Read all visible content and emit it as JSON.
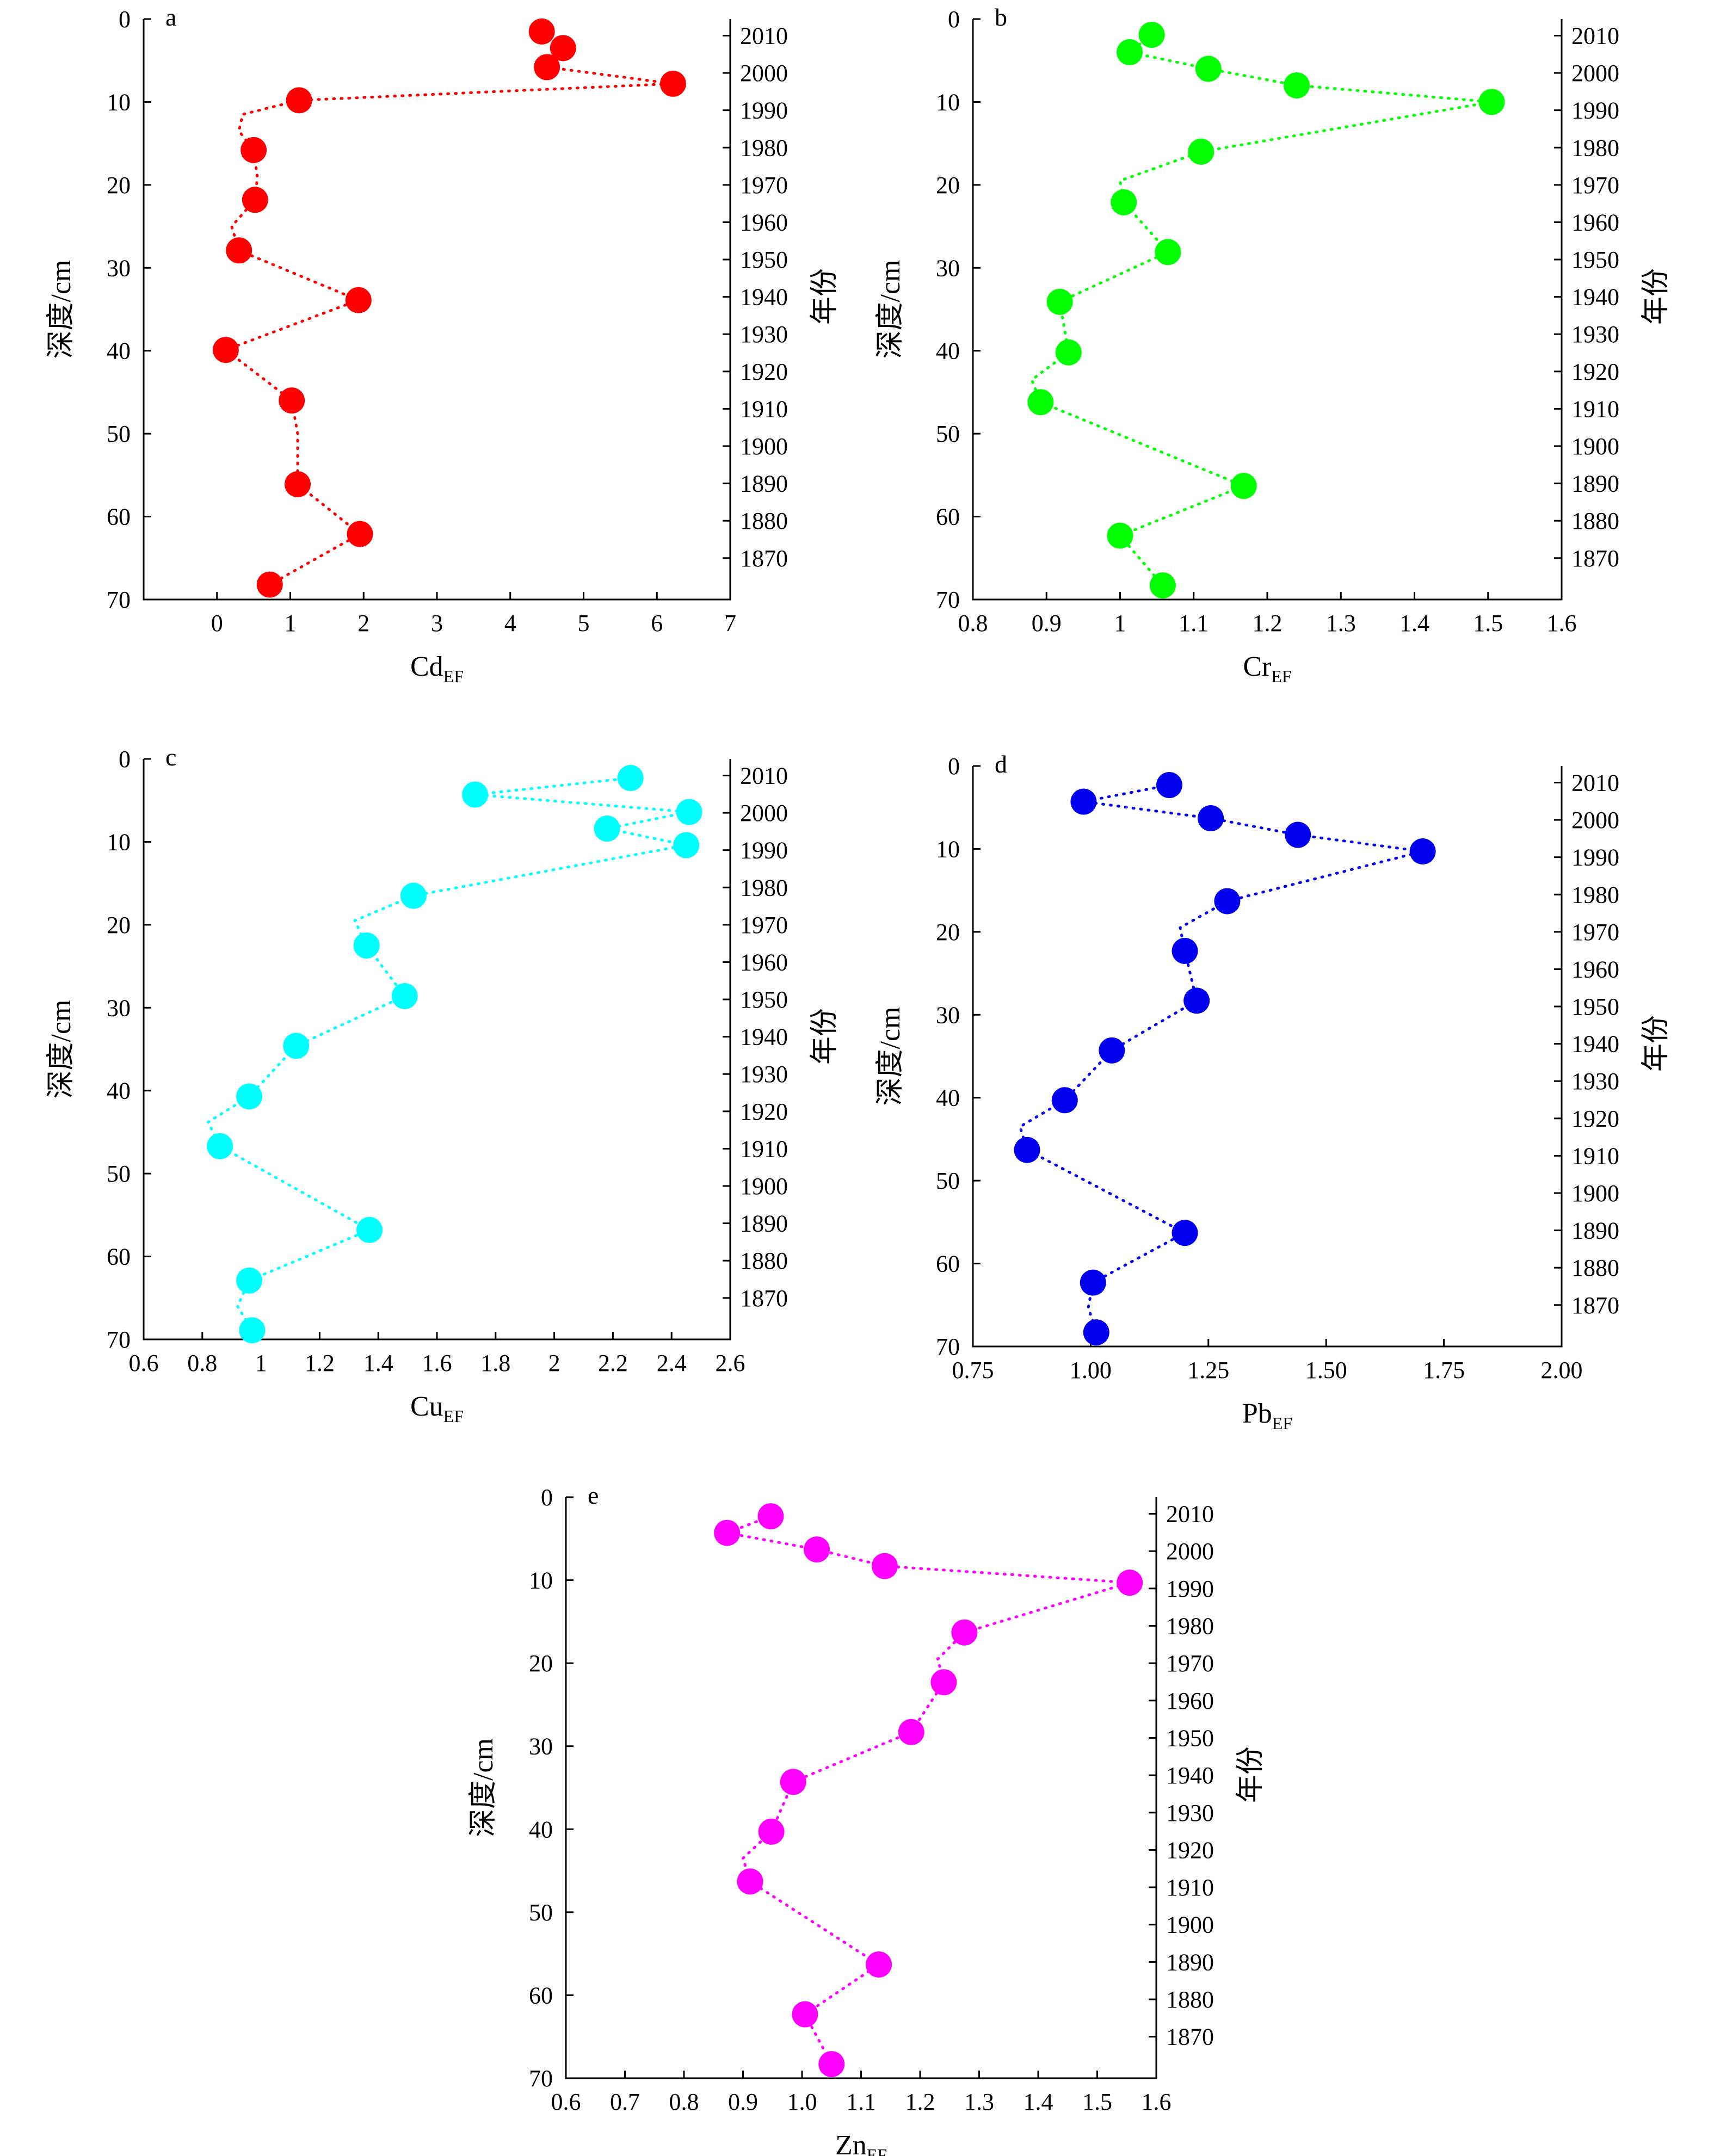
{
  "chart_data": [
    {
      "panel": "a",
      "type": "scatter",
      "xlabel_main": "Cd",
      "xlabel_sub": "EF",
      "ylabel": "深度/cm",
      "ylabel_right": "年份",
      "color": "#ff0000",
      "xlim": [
        -1,
        7
      ],
      "xticks": [
        0,
        1,
        2,
        3,
        4,
        5,
        6,
        7
      ],
      "ylim": [
        0,
        70
      ],
      "yticks": [
        0,
        10,
        20,
        30,
        40,
        50,
        60,
        70
      ],
      "right_ticks": [
        {
          "label": "2010",
          "depth": 2.0
        },
        {
          "label": "2000",
          "depth": 6.5
        },
        {
          "label": "1990",
          "depth": 11.0
        },
        {
          "label": "1980",
          "depth": 15.5
        },
        {
          "label": "1970",
          "depth": 20.0
        },
        {
          "label": "1960",
          "depth": 24.5
        },
        {
          "label": "1950",
          "depth": 29.0
        },
        {
          "label": "1940",
          "depth": 33.5
        },
        {
          "label": "1930",
          "depth": 38.0
        },
        {
          "label": "1920",
          "depth": 42.5
        },
        {
          "label": "1910",
          "depth": 47.0
        },
        {
          "label": "1900",
          "depth": 51.5
        },
        {
          "label": "1890",
          "depth": 56.0
        },
        {
          "label": "1880",
          "depth": 60.5
        },
        {
          "label": "1870",
          "depth": 65.0
        }
      ],
      "points": [
        {
          "x": 4.43,
          "y": 1.5
        },
        {
          "x": 4.72,
          "y": 3.5
        },
        {
          "x": 4.5,
          "y": 5.8
        },
        {
          "x": 6.22,
          "y": 7.8
        },
        {
          "x": 1.12,
          "y": 9.8
        },
        {
          "x": 0.5,
          "y": 15.8
        },
        {
          "x": 0.52,
          "y": 21.8
        },
        {
          "x": 0.3,
          "y": 27.9
        },
        {
          "x": 1.93,
          "y": 33.9
        },
        {
          "x": 0.12,
          "y": 39.9
        },
        {
          "x": 1.02,
          "y": 46.0
        },
        {
          "x": 1.1,
          "y": 56.1
        },
        {
          "x": 1.95,
          "y": 62.1
        },
        {
          "x": 0.72,
          "y": 68.2
        }
      ],
      "curve": [
        {
          "x": 4.43,
          "y": 1.5
        },
        {
          "x": 4.72,
          "y": 3.5
        },
        {
          "x": 4.5,
          "y": 5.8
        },
        {
          "x": 6.22,
          "y": 7.8
        },
        {
          "x": 1.12,
          "y": 9.8
        },
        {
          "x": 0.35,
          "y": 11.5
        },
        {
          "x": 0.3,
          "y": 13.5
        },
        {
          "x": 0.5,
          "y": 15.8
        },
        {
          "x": 0.55,
          "y": 19.0
        },
        {
          "x": 0.52,
          "y": 21.8
        },
        {
          "x": 0.2,
          "y": 25.0
        },
        {
          "x": 0.3,
          "y": 27.9
        },
        {
          "x": 1.93,
          "y": 33.9
        },
        {
          "x": 0.12,
          "y": 39.9
        },
        {
          "x": 1.02,
          "y": 46.0
        },
        {
          "x": 1.1,
          "y": 50.0
        },
        {
          "x": 1.1,
          "y": 56.1
        },
        {
          "x": 1.95,
          "y": 62.1
        },
        {
          "x": 0.72,
          "y": 68.2
        }
      ]
    },
    {
      "panel": "b",
      "type": "scatter",
      "xlabel_main": "Cr",
      "xlabel_sub": "EF",
      "ylabel": "深度/cm",
      "ylabel_right": "年份",
      "color": "#00ff00",
      "xlim": [
        0.8,
        1.6
      ],
      "xticks": [
        0.8,
        0.9,
        1.0,
        1.1,
        1.2,
        1.3,
        1.4,
        1.5,
        1.6
      ],
      "ylim": [
        0,
        70
      ],
      "yticks": [
        0,
        10,
        20,
        30,
        40,
        50,
        60,
        70
      ],
      "right_ticks": [
        {
          "label": "2010",
          "depth": 2.0
        },
        {
          "label": "2000",
          "depth": 6.5
        },
        {
          "label": "1990",
          "depth": 11.0
        },
        {
          "label": "1980",
          "depth": 15.5
        },
        {
          "label": "1970",
          "depth": 20.0
        },
        {
          "label": "1960",
          "depth": 24.5
        },
        {
          "label": "1950",
          "depth": 29.0
        },
        {
          "label": "1940",
          "depth": 33.5
        },
        {
          "label": "1930",
          "depth": 38.0
        },
        {
          "label": "1920",
          "depth": 42.5
        },
        {
          "label": "1910",
          "depth": 47.0
        },
        {
          "label": "1900",
          "depth": 51.5
        },
        {
          "label": "1890",
          "depth": 56.0
        },
        {
          "label": "1880",
          "depth": 60.5
        },
        {
          "label": "1870",
          "depth": 65.0
        }
      ],
      "points": [
        {
          "x": 1.043,
          "y": 1.9
        },
        {
          "x": 1.013,
          "y": 4.0
        },
        {
          "x": 1.12,
          "y": 6.0
        },
        {
          "x": 1.24,
          "y": 8.0
        },
        {
          "x": 1.505,
          "y": 10.0
        },
        {
          "x": 1.11,
          "y": 16.0
        },
        {
          "x": 1.005,
          "y": 22.1
        },
        {
          "x": 1.065,
          "y": 28.1
        },
        {
          "x": 0.918,
          "y": 34.1
        },
        {
          "x": 0.93,
          "y": 40.2
        },
        {
          "x": 0.892,
          "y": 46.2
        },
        {
          "x": 1.168,
          "y": 56.3
        },
        {
          "x": 1.0,
          "y": 62.3
        },
        {
          "x": 1.058,
          "y": 68.3
        }
      ],
      "curve": [
        {
          "x": 1.043,
          "y": 1.9
        },
        {
          "x": 1.013,
          "y": 4.0
        },
        {
          "x": 1.12,
          "y": 6.0
        },
        {
          "x": 1.24,
          "y": 8.0
        },
        {
          "x": 1.505,
          "y": 10.0
        },
        {
          "x": 1.11,
          "y": 16.0
        },
        {
          "x": 1.0,
          "y": 19.5
        },
        {
          "x": 1.005,
          "y": 22.1
        },
        {
          "x": 1.065,
          "y": 28.1
        },
        {
          "x": 0.918,
          "y": 34.1
        },
        {
          "x": 0.93,
          "y": 40.2
        },
        {
          "x": 0.88,
          "y": 43.5
        },
        {
          "x": 0.892,
          "y": 46.2
        },
        {
          "x": 1.168,
          "y": 56.3
        },
        {
          "x": 1.0,
          "y": 62.3
        },
        {
          "x": 1.058,
          "y": 68.3
        }
      ]
    },
    {
      "panel": "c",
      "type": "scatter",
      "xlabel_main": "Cu",
      "xlabel_sub": "EF",
      "ylabel": "深度/cm",
      "ylabel_right": "年份",
      "color": "#00ffff",
      "xlim": [
        0.6,
        2.6
      ],
      "xticks": [
        0.6,
        0.8,
        1.0,
        1.2,
        1.4,
        1.6,
        1.8,
        2.0,
        2.2,
        2.4,
        2.6
      ],
      "ylim": [
        0,
        70
      ],
      "yticks": [
        0,
        10,
        20,
        30,
        40,
        50,
        60,
        70
      ],
      "right_ticks": [
        {
          "label": "2010",
          "depth": 2.0
        },
        {
          "label": "2000",
          "depth": 6.5
        },
        {
          "label": "1990",
          "depth": 11.0
        },
        {
          "label": "1980",
          "depth": 15.5
        },
        {
          "label": "1970",
          "depth": 20.0
        },
        {
          "label": "1960",
          "depth": 24.5
        },
        {
          "label": "1950",
          "depth": 29.0
        },
        {
          "label": "1940",
          "depth": 33.5
        },
        {
          "label": "1930",
          "depth": 38.0
        },
        {
          "label": "1920",
          "depth": 42.5
        },
        {
          "label": "1910",
          "depth": 47.0
        },
        {
          "label": "1900",
          "depth": 51.5
        },
        {
          "label": "1890",
          "depth": 56.0
        },
        {
          "label": "1880",
          "depth": 60.5
        },
        {
          "label": "1870",
          "depth": 65.0
        }
      ],
      "points": [
        {
          "x": 2.26,
          "y": 2.3
        },
        {
          "x": 1.73,
          "y": 4.3
        },
        {
          "x": 2.46,
          "y": 6.4
        },
        {
          "x": 2.18,
          "y": 8.4
        },
        {
          "x": 2.45,
          "y": 10.4
        },
        {
          "x": 1.52,
          "y": 16.5
        },
        {
          "x": 1.36,
          "y": 22.5
        },
        {
          "x": 1.49,
          "y": 28.6
        },
        {
          "x": 1.12,
          "y": 34.6
        },
        {
          "x": 0.96,
          "y": 40.7
        },
        {
          "x": 0.86,
          "y": 46.7
        },
        {
          "x": 1.37,
          "y": 56.8
        },
        {
          "x": 0.96,
          "y": 62.9
        },
        {
          "x": 0.97,
          "y": 68.9
        }
      ],
      "curve": [
        {
          "x": 2.26,
          "y": 2.3
        },
        {
          "x": 1.73,
          "y": 4.3
        },
        {
          "x": 2.46,
          "y": 6.4
        },
        {
          "x": 2.18,
          "y": 8.4
        },
        {
          "x": 2.45,
          "y": 10.4
        },
        {
          "x": 1.52,
          "y": 16.5
        },
        {
          "x": 1.32,
          "y": 19.5
        },
        {
          "x": 1.36,
          "y": 22.5
        },
        {
          "x": 1.49,
          "y": 28.6
        },
        {
          "x": 1.12,
          "y": 34.6
        },
        {
          "x": 0.96,
          "y": 40.7
        },
        {
          "x": 0.82,
          "y": 43.8
        },
        {
          "x": 0.86,
          "y": 46.7
        },
        {
          "x": 1.37,
          "y": 56.8
        },
        {
          "x": 0.96,
          "y": 62.9
        },
        {
          "x": 0.92,
          "y": 66.0
        },
        {
          "x": 0.97,
          "y": 68.9
        }
      ]
    },
    {
      "panel": "d",
      "type": "scatter",
      "xlabel_main": "Pb",
      "xlabel_sub": "EF",
      "ylabel": "深度/cm",
      "ylabel_right": "年份",
      "color": "#0000ee",
      "xlim": [
        0.75,
        2.0
      ],
      "xticks": [
        0.75,
        1.0,
        1.25,
        1.5,
        1.75,
        2.0
      ],
      "xtick_labels": [
        "0.75",
        "1.00",
        "1.25",
        "1.50",
        "1.75",
        "2.00"
      ],
      "ylim": [
        0,
        70
      ],
      "yticks": [
        0,
        10,
        20,
        30,
        40,
        50,
        60,
        70
      ],
      "right_ticks": [
        {
          "label": "2010",
          "depth": 2.0
        },
        {
          "label": "2000",
          "depth": 6.5
        },
        {
          "label": "1990",
          "depth": 11.0
        },
        {
          "label": "1980",
          "depth": 15.5
        },
        {
          "label": "1970",
          "depth": 20.0
        },
        {
          "label": "1960",
          "depth": 24.5
        },
        {
          "label": "1950",
          "depth": 29.0
        },
        {
          "label": "1940",
          "depth": 33.5
        },
        {
          "label": "1930",
          "depth": 38.0
        },
        {
          "label": "1920",
          "depth": 42.5
        },
        {
          "label": "1910",
          "depth": 47.0
        },
        {
          "label": "1900",
          "depth": 51.5
        },
        {
          "label": "1890",
          "depth": 56.0
        },
        {
          "label": "1880",
          "depth": 60.5
        },
        {
          "label": "1870",
          "depth": 65.0
        }
      ],
      "points": [
        {
          "x": 1.167,
          "y": 2.3
        },
        {
          "x": 0.985,
          "y": 4.3
        },
        {
          "x": 1.255,
          "y": 6.3
        },
        {
          "x": 1.44,
          "y": 8.3
        },
        {
          "x": 1.705,
          "y": 10.3
        },
        {
          "x": 1.29,
          "y": 16.3
        },
        {
          "x": 1.2,
          "y": 22.3
        },
        {
          "x": 1.225,
          "y": 28.3
        },
        {
          "x": 1.045,
          "y": 34.3
        },
        {
          "x": 0.945,
          "y": 40.3
        },
        {
          "x": 0.865,
          "y": 46.3
        },
        {
          "x": 1.2,
          "y": 56.3
        },
        {
          "x": 1.005,
          "y": 62.3
        },
        {
          "x": 1.012,
          "y": 68.3
        }
      ],
      "curve": [
        {
          "x": 1.167,
          "y": 2.3
        },
        {
          "x": 0.985,
          "y": 4.3
        },
        {
          "x": 1.255,
          "y": 6.3
        },
        {
          "x": 1.44,
          "y": 8.3
        },
        {
          "x": 1.705,
          "y": 10.3
        },
        {
          "x": 1.29,
          "y": 16.3
        },
        {
          "x": 1.19,
          "y": 19.5
        },
        {
          "x": 1.2,
          "y": 22.3
        },
        {
          "x": 1.225,
          "y": 28.3
        },
        {
          "x": 1.045,
          "y": 34.3
        },
        {
          "x": 0.945,
          "y": 40.3
        },
        {
          "x": 0.85,
          "y": 43.5
        },
        {
          "x": 0.865,
          "y": 46.3
        },
        {
          "x": 1.2,
          "y": 56.3
        },
        {
          "x": 1.005,
          "y": 62.3
        },
        {
          "x": 0.995,
          "y": 65.3
        },
        {
          "x": 1.012,
          "y": 68.3
        }
      ]
    },
    {
      "panel": "e",
      "type": "scatter",
      "xlabel_main": "Zn",
      "xlabel_sub": "EF",
      "ylabel": "深度/cm",
      "ylabel_right": "年份",
      "color": "#ff00ff",
      "xlim": [
        0.6,
        1.6
      ],
      "xticks": [
        0.6,
        0.7,
        0.8,
        0.9,
        1.0,
        1.1,
        1.2,
        1.3,
        1.4,
        1.5,
        1.6
      ],
      "xtick_labels": [
        "0.6",
        "0.7",
        "0.8",
        "0.9",
        "1.0",
        "1.1",
        "1.2",
        "1.3",
        "1.4",
        "1.5",
        "1.6"
      ],
      "ylim": [
        0,
        70
      ],
      "yticks": [
        0,
        10,
        20,
        30,
        40,
        50,
        60,
        70
      ],
      "right_ticks": [
        {
          "label": "2010",
          "depth": 2.0
        },
        {
          "label": "2000",
          "depth": 6.5
        },
        {
          "label": "1990",
          "depth": 11.0
        },
        {
          "label": "1980",
          "depth": 15.5
        },
        {
          "label": "1970",
          "depth": 20.0
        },
        {
          "label": "1960",
          "depth": 24.5
        },
        {
          "label": "1950",
          "depth": 29.0
        },
        {
          "label": "1940",
          "depth": 33.5
        },
        {
          "label": "1930",
          "depth": 38.0
        },
        {
          "label": "1920",
          "depth": 42.5
        },
        {
          "label": "1910",
          "depth": 47.0
        },
        {
          "label": "1900",
          "depth": 51.5
        },
        {
          "label": "1890",
          "depth": 56.0
        },
        {
          "label": "1880",
          "depth": 60.5
        },
        {
          "label": "1870",
          "depth": 65.0
        }
      ],
      "points": [
        {
          "x": 0.947,
          "y": 2.3
        },
        {
          "x": 0.873,
          "y": 4.3
        },
        {
          "x": 1.025,
          "y": 6.3
        },
        {
          "x": 1.14,
          "y": 8.3
        },
        {
          "x": 1.555,
          "y": 10.3
        },
        {
          "x": 1.275,
          "y": 16.3
        },
        {
          "x": 1.24,
          "y": 22.3
        },
        {
          "x": 1.185,
          "y": 28.3
        },
        {
          "x": 0.985,
          "y": 34.3
        },
        {
          "x": 0.948,
          "y": 40.3
        },
        {
          "x": 0.912,
          "y": 46.3
        },
        {
          "x": 1.13,
          "y": 56.3
        },
        {
          "x": 1.005,
          "y": 62.3
        },
        {
          "x": 1.05,
          "y": 68.3
        }
      ],
      "curve": [
        {
          "x": 0.947,
          "y": 2.3
        },
        {
          "x": 0.873,
          "y": 4.3
        },
        {
          "x": 1.025,
          "y": 6.3
        },
        {
          "x": 1.14,
          "y": 8.3
        },
        {
          "x": 1.555,
          "y": 10.3
        },
        {
          "x": 1.275,
          "y": 16.3
        },
        {
          "x": 1.23,
          "y": 19.5
        },
        {
          "x": 1.24,
          "y": 22.3
        },
        {
          "x": 1.185,
          "y": 28.3
        },
        {
          "x": 0.985,
          "y": 34.3
        },
        {
          "x": 0.948,
          "y": 40.3
        },
        {
          "x": 0.9,
          "y": 43.5
        },
        {
          "x": 0.912,
          "y": 46.3
        },
        {
          "x": 1.13,
          "y": 56.3
        },
        {
          "x": 1.005,
          "y": 62.3
        },
        {
          "x": 1.05,
          "y": 68.3
        }
      ]
    }
  ]
}
